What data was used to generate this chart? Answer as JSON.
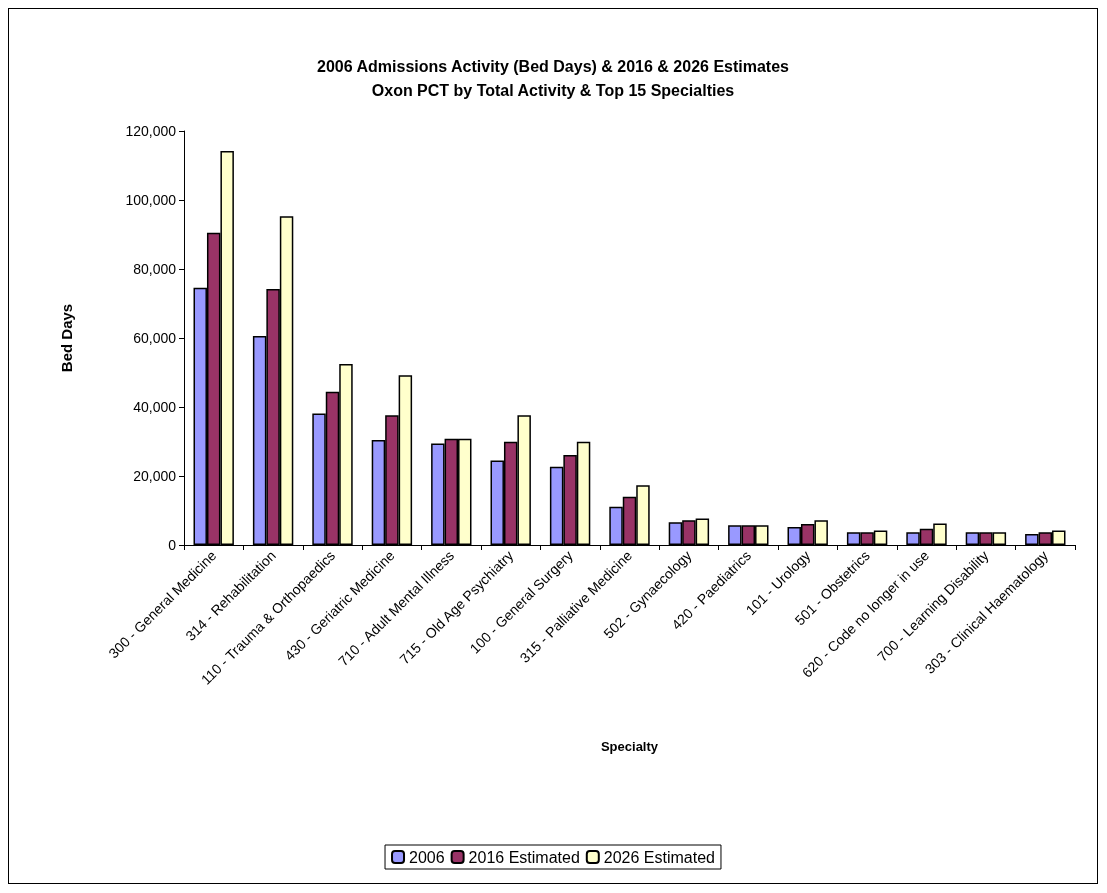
{
  "chart_data": {
    "type": "bar",
    "title": "2006 Admissions Activity (Bed Days) & 2016 & 2026 Estimates",
    "subtitle": "Oxon PCT by Total Activity & Top 15 Specialties",
    "xlabel": "Specialty",
    "ylabel": "Bed Days",
    "categories": [
      "300 - General Medicine",
      "314 - Rehabilitation",
      "110 - Trauma & Orthopaedics",
      "430 - Geriatric Medicine",
      "710 - Adult Mental Illness",
      "715 - Old Age Psychiatry",
      "100 - General Surgery",
      "315 - Palliative Medicine",
      "502 - Gynaecology",
      "420 - Paediatrics",
      "101 - Urology",
      "501 - Obstetrics",
      "620 - Code no longer in use",
      "700 - Learning Disability",
      "303 - Clinical Haematology"
    ],
    "series": [
      {
        "name": "2006",
        "color": "#9999ff",
        "values": [
          74600,
          60600,
          38100,
          30400,
          29400,
          24500,
          22700,
          11100,
          6600,
          5700,
          5200,
          3700,
          3700,
          3700,
          3200
        ]
      },
      {
        "name": "2016 Estimated",
        "color": "#993366",
        "values": [
          90500,
          74200,
          44400,
          37600,
          30800,
          29900,
          26100,
          14000,
          7200,
          5700,
          6100,
          3700,
          4700,
          3700,
          3700
        ]
      },
      {
        "name": "2026 Estimated",
        "color": "#ffffcc",
        "values": [
          114200,
          95300,
          52500,
          49200,
          30800,
          37600,
          29900,
          17300,
          7700,
          5700,
          7200,
          4200,
          6200,
          3700,
          4200
        ]
      }
    ],
    "ylim": [
      0,
      120000
    ],
    "yticks": [
      0,
      {
        "value": 20000,
        "label": "20,000"
      },
      {
        "value": 40000,
        "label": "40,000"
      },
      {
        "value": 60000,
        "label": "60,000"
      },
      {
        "value": 80000,
        "label": "80,000"
      },
      {
        "value": 100000,
        "label": "100,000"
      },
      {
        "value": 120000,
        "label": "120,000"
      }
    ],
    "grid": false,
    "legend": "bottom"
  }
}
